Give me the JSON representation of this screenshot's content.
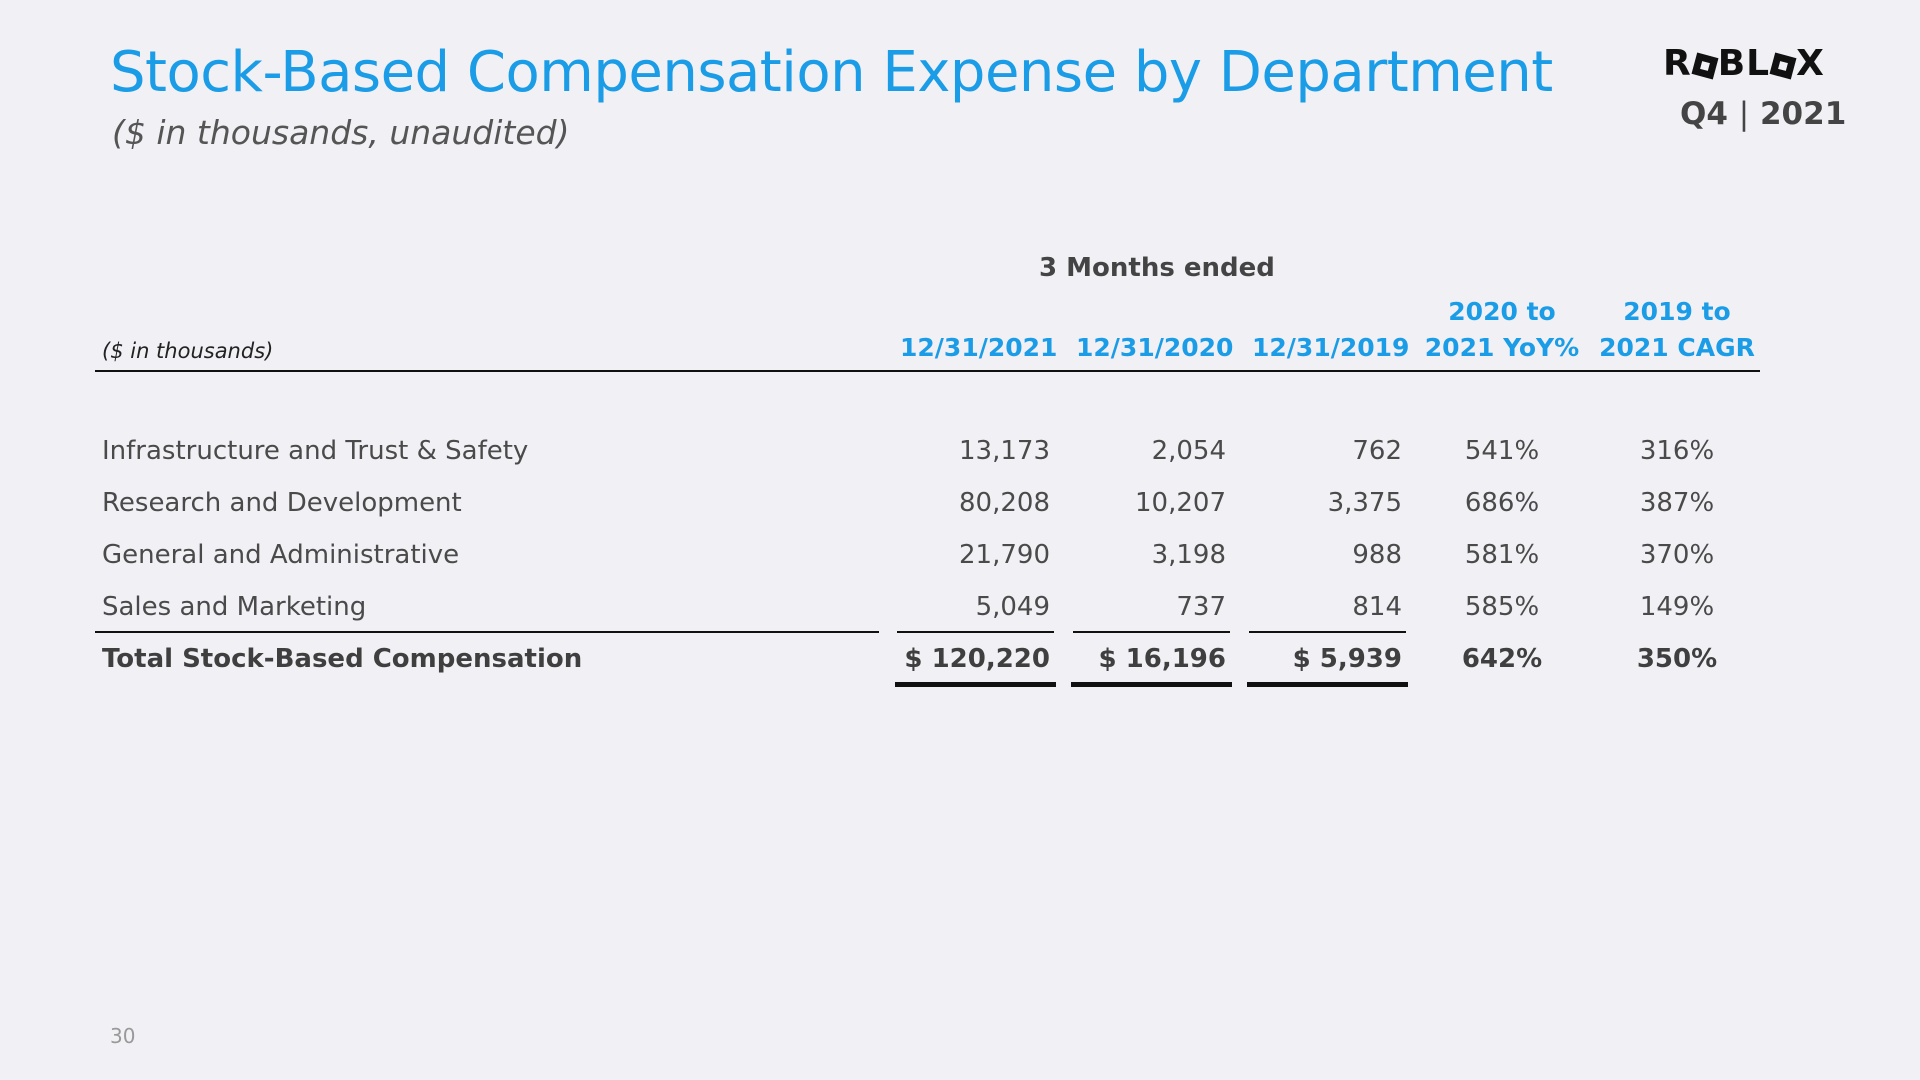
{
  "header": {
    "title": "Stock-Based Compensation Expense by Department",
    "subtitle": "($ in thousands, unaudited)",
    "logo_text": "ROBLOX",
    "quarter": "Q4",
    "separator": "|",
    "year": "2021",
    "brand_color": "#1b9ce6"
  },
  "table": {
    "group_header": "3 Months ended",
    "units_label": "($ in thousands)",
    "columns": [
      {
        "line1": "",
        "line2": "12/31/2021"
      },
      {
        "line1": "",
        "line2": "12/31/2020"
      },
      {
        "line1": "",
        "line2": "12/31/2019"
      },
      {
        "line1": "2020 to",
        "line2": "2021 YoY%"
      },
      {
        "line1": "2019 to",
        "line2": "2021 CAGR"
      }
    ],
    "rows": [
      {
        "label": "Infrastructure and Trust & Safety",
        "values": [
          "13,173",
          "2,054",
          "762",
          "541%",
          "316%"
        ]
      },
      {
        "label": "Research and Development",
        "values": [
          "80,208",
          "10,207",
          "3,375",
          "686%",
          "387%"
        ]
      },
      {
        "label": "General and Administrative",
        "values": [
          "21,790",
          "3,198",
          "988",
          "581%",
          "370%"
        ]
      },
      {
        "label": "Sales and Marketing",
        "values": [
          "5,049",
          "737",
          "814",
          "585%",
          "149%"
        ]
      }
    ],
    "total": {
      "label": "Total Stock-Based Compensation",
      "values": [
        "$ 120,220",
        "$ 16,196",
        "$ 5,939",
        "642%",
        "350%"
      ]
    }
  },
  "footer": {
    "page_number": "30"
  }
}
